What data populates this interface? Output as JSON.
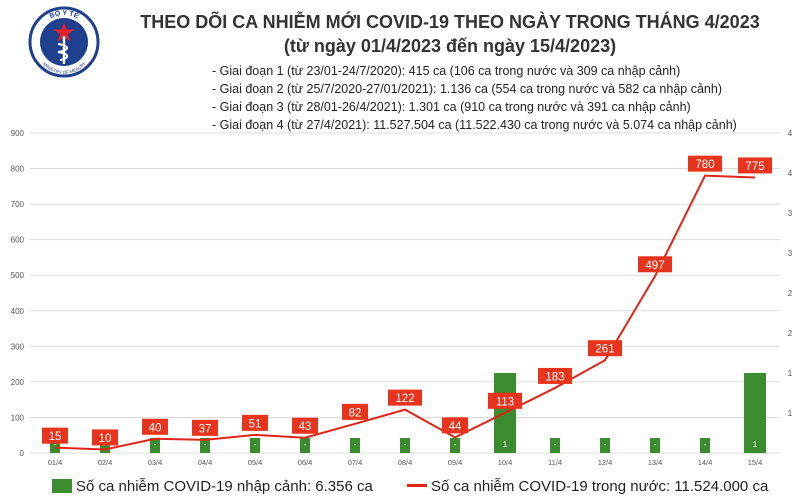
{
  "title": "THEO DÕI CA NHIỄM MỚI COVID-19 THEO NGÀY TRONG THÁNG 4/2023",
  "subtitle": "(từ ngày 01/4/2023 đến ngày 15/4/2023)",
  "logo": {
    "text_top": "BỘ Y TẾ",
    "text_bottom": "MINISTRY OF HEALTH",
    "icon": "caduceus-star-icon"
  },
  "periods": [
    "- Giai đoạn 1 (từ 23/01-24/7/2020): 415 ca (106 ca trong nước và 309 ca nhập cảnh)",
    "- Giai đoạn 2 (từ 25/7/2020-27/01/2021): 1.136 ca (554 ca trong nước và 582 ca nhập cảnh)",
    "- Giai đoạn 3 (từ 28/01-26/4/2021): 1.301 ca (910 ca trong nước và 391 ca nhập cảnh)",
    "- Giai đoạn 4 (từ 27/4/2021): 11.527.504 ca (11.522.430 ca trong nước và 5.074 ca nhập cảnh)"
  ],
  "legend": {
    "imported": "Số ca nhiễm COVID-19 nhập cảnh: 6.356 ca",
    "domestic": "Số ca nhiễm COVID-19 trong nước: 11.524.000 ca"
  },
  "colors": {
    "bar": "#3b8c2e",
    "line": "#e02418",
    "label_bg": "#e8341c",
    "grid": "#dcdcdc"
  },
  "chart_data": {
    "type": "bar+line",
    "categories": [
      "01/4",
      "02/4",
      "03/4",
      "04/4",
      "05/4",
      "06/4",
      "07/4",
      "08/4",
      "09/4",
      "10/4",
      "11/4",
      "12/4",
      "13/4",
      "14/4",
      "15/4"
    ],
    "series": [
      {
        "name": "Số ca nhiễm COVID-19 trong nước",
        "type": "line",
        "axis": "left",
        "values": [
          15,
          10,
          40,
          37,
          51,
          43,
          82,
          122,
          44,
          113,
          183,
          261,
          497,
          780,
          775
        ]
      },
      {
        "name": "Số ca nhiễm COVID-19 nhập cảnh",
        "type": "bar",
        "axis": "right",
        "values": [
          0,
          0,
          0,
          0,
          0,
          0,
          0,
          0,
          0,
          1,
          0,
          0,
          0,
          0,
          1
        ],
        "labels": [
          "-",
          "-",
          "-",
          "-",
          "-",
          "-",
          "-",
          "-",
          "-",
          "1",
          "-",
          "-",
          "-",
          "-",
          "1"
        ]
      }
    ],
    "left_axis": {
      "ylim": [
        0,
        900
      ],
      "ticks": [
        0,
        100,
        200,
        300,
        400,
        500,
        600,
        700,
        800,
        900
      ]
    },
    "right_axis": {
      "ylim": [
        0,
        4
      ],
      "tick_labels": [
        "",
        "1",
        "1",
        "2",
        "2",
        "3",
        "3",
        "4",
        "4"
      ]
    },
    "grid": true
  }
}
